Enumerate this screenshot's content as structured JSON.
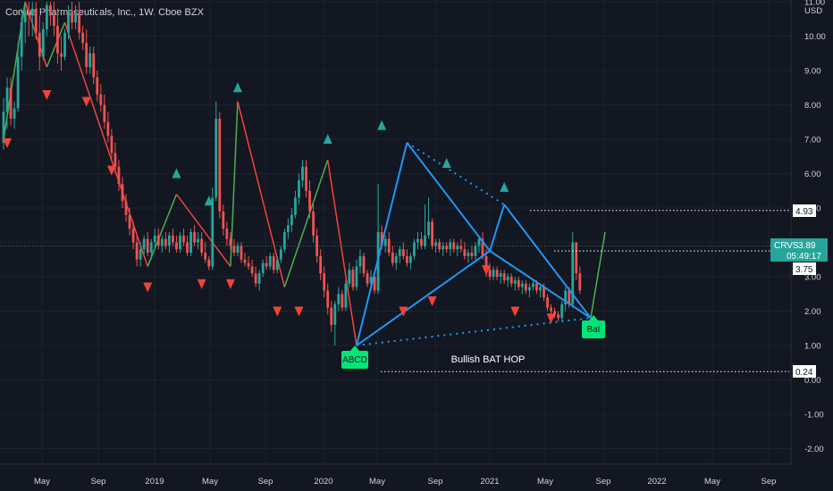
{
  "header": {
    "title": "Corvus Pharmaceuticals, Inc., 1W, Cboe BZX"
  },
  "chart_data": {
    "type": "candlestick",
    "title": "Corvus Pharmaceuticals, Inc., 1W, Cboe BZX",
    "currency": "USD",
    "y_ticks": [
      "11.00",
      "10.00",
      "9.00",
      "8.00",
      "7.00",
      "6.00",
      "5.00",
      "4.00",
      "3.00",
      "2.00",
      "1.00",
      "0.00",
      "-1.00",
      "-2.00"
    ],
    "ylim": [
      -2.5,
      11.0
    ],
    "x_ticks": [
      "May",
      "Sep",
      "2019",
      "May",
      "Sep",
      "2020",
      "May",
      "Sep",
      "2021",
      "May",
      "Sep",
      "2022",
      "May",
      "Sep"
    ],
    "price_tag": {
      "symbol": "CRVS",
      "price": "3.89",
      "countdown": "05:49:17"
    },
    "level_labels": [
      "4.93",
      "3.75",
      "0.24"
    ],
    "pattern_labels": {
      "abcd": "ABCD",
      "bat": "Bat",
      "text": "Bullish BAT HOP"
    },
    "colors": {
      "up": "#26a69a",
      "down": "#ef5350",
      "pattern": "#2196f3",
      "zigzag_up": "#4caf50",
      "zigzag_down": "#f44336"
    },
    "candles": [
      [
        6.9,
        8.2,
        6.7,
        7.8
      ],
      [
        7.8,
        8.8,
        7.3,
        8.5
      ],
      [
        8.5,
        8.8,
        7.4,
        7.6
      ],
      [
        7.6,
        8.1,
        7.3,
        7.9
      ],
      [
        7.9,
        9.8,
        7.8,
        9.4
      ],
      [
        9.4,
        10.8,
        9.0,
        10.4
      ],
      [
        10.4,
        11.0,
        9.8,
        10.7
      ],
      [
        10.7,
        11.0,
        10.0,
        10.6
      ],
      [
        10.6,
        11.0,
        10.0,
        10.8
      ],
      [
        10.8,
        11.0,
        9.9,
        10.1
      ],
      [
        10.1,
        10.6,
        9.0,
        9.4
      ],
      [
        9.4,
        10.4,
        9.3,
        10.2
      ],
      [
        10.2,
        11.0,
        10.0,
        10.9
      ],
      [
        10.9,
        11.0,
        10.3,
        10.6
      ],
      [
        10.6,
        11.0,
        10.0,
        10.3
      ],
      [
        10.3,
        10.8,
        9.2,
        9.5
      ],
      [
        9.5,
        10.0,
        9.0,
        9.4
      ],
      [
        9.4,
        10.2,
        9.3,
        10.1
      ],
      [
        10.1,
        10.9,
        9.9,
        10.7
      ],
      [
        10.7,
        11.0,
        10.2,
        10.4
      ],
      [
        10.4,
        10.9,
        10.2,
        10.7
      ],
      [
        10.7,
        11.0,
        9.9,
        10.1
      ],
      [
        10.1,
        10.3,
        9.6,
        9.8
      ],
      [
        9.8,
        10.2,
        8.9,
        9.1
      ],
      [
        9.1,
        9.7,
        8.9,
        9.5
      ],
      [
        9.5,
        9.7,
        8.6,
        8.8
      ],
      [
        8.8,
        9.0,
        8.1,
        8.3
      ],
      [
        8.3,
        8.6,
        7.8,
        8.0
      ],
      [
        8.0,
        8.3,
        7.3,
        7.5
      ],
      [
        7.5,
        7.8,
        6.9,
        7.1
      ],
      [
        7.1,
        7.3,
        6.4,
        6.6
      ],
      [
        6.6,
        6.9,
        6.0,
        6.2
      ],
      [
        6.2,
        6.4,
        5.5,
        5.7
      ],
      [
        5.7,
        5.9,
        5.0,
        5.2
      ],
      [
        5.2,
        5.4,
        4.6,
        4.8
      ],
      [
        4.8,
        5.0,
        4.2,
        4.4
      ],
      [
        4.4,
        4.6,
        3.8,
        4.0
      ],
      [
        4.0,
        4.2,
        3.3,
        3.5
      ],
      [
        3.5,
        4.0,
        3.3,
        3.8
      ],
      [
        3.8,
        4.2,
        3.6,
        4.1
      ],
      [
        4.1,
        4.3,
        3.6,
        3.7
      ],
      [
        3.7,
        4.1,
        3.5,
        4.0
      ],
      [
        4.0,
        4.4,
        3.8,
        4.2
      ],
      [
        4.2,
        4.4,
        3.8,
        3.9
      ],
      [
        3.9,
        4.2,
        3.7,
        4.1
      ],
      [
        4.1,
        4.3,
        3.8,
        3.9
      ],
      [
        3.9,
        4.3,
        3.7,
        4.2
      ],
      [
        4.2,
        4.4,
        3.9,
        4.0
      ],
      [
        4.0,
        4.2,
        3.7,
        3.8
      ],
      [
        3.8,
        4.3,
        3.7,
        4.2
      ],
      [
        4.2,
        4.4,
        3.9,
        4.0
      ],
      [
        4.0,
        4.2,
        3.6,
        3.7
      ],
      [
        3.7,
        4.4,
        3.6,
        4.3
      ],
      [
        4.3,
        4.5,
        3.9,
        4.0
      ],
      [
        4.0,
        4.3,
        3.8,
        4.1
      ],
      [
        4.1,
        4.3,
        3.6,
        3.7
      ],
      [
        3.7,
        4.0,
        3.4,
        3.5
      ],
      [
        3.5,
        3.6,
        3.2,
        3.3
      ],
      [
        3.3,
        5.6,
        3.2,
        5.3
      ],
      [
        5.3,
        8.1,
        5.2,
        7.6
      ],
      [
        7.6,
        7.8,
        4.7,
        4.9
      ],
      [
        4.9,
        5.1,
        4.2,
        4.4
      ],
      [
        4.4,
        4.6,
        3.9,
        4.1
      ],
      [
        4.1,
        4.3,
        3.8,
        3.9
      ],
      [
        3.9,
        4.1,
        3.6,
        3.7
      ],
      [
        3.7,
        4.0,
        3.6,
        3.9
      ],
      [
        3.9,
        4.0,
        3.4,
        3.5
      ],
      [
        3.5,
        3.7,
        3.3,
        3.4
      ],
      [
        3.4,
        3.6,
        3.2,
        3.3
      ],
      [
        3.3,
        3.5,
        3.0,
        3.1
      ],
      [
        3.1,
        3.3,
        2.7,
        2.8
      ],
      [
        2.8,
        3.2,
        2.6,
        3.1
      ],
      [
        3.1,
        3.5,
        3.0,
        3.4
      ],
      [
        3.4,
        3.6,
        3.2,
        3.3
      ],
      [
        3.3,
        3.7,
        3.2,
        3.6
      ],
      [
        3.6,
        3.7,
        3.1,
        3.2
      ],
      [
        3.2,
        3.6,
        3.1,
        3.5
      ],
      [
        3.5,
        3.9,
        3.4,
        3.8
      ],
      [
        3.8,
        4.4,
        3.7,
        4.3
      ],
      [
        4.3,
        4.7,
        4.1,
        4.5
      ],
      [
        4.5,
        5.0,
        4.3,
        4.8
      ],
      [
        4.8,
        5.5,
        4.7,
        5.3
      ],
      [
        5.3,
        6.0,
        5.1,
        5.8
      ],
      [
        5.8,
        6.4,
        5.6,
        6.2
      ],
      [
        6.2,
        6.4,
        5.3,
        5.5
      ],
      [
        5.5,
        5.8,
        4.7,
        4.9
      ],
      [
        4.9,
        5.1,
        4.0,
        4.2
      ],
      [
        4.2,
        4.4,
        3.4,
        3.6
      ],
      [
        3.6,
        3.8,
        2.9,
        3.1
      ],
      [
        3.1,
        3.3,
        2.4,
        2.6
      ],
      [
        2.6,
        2.8,
        1.9,
        2.1
      ],
      [
        2.1,
        2.3,
        1.4,
        1.6
      ],
      [
        1.6,
        2.3,
        1.0,
        2.2
      ],
      [
        2.2,
        2.7,
        2.0,
        2.5
      ],
      [
        2.5,
        2.6,
        2.0,
        2.1
      ],
      [
        2.1,
        2.9,
        2.0,
        2.8
      ],
      [
        2.8,
        3.4,
        2.7,
        3.2
      ],
      [
        3.2,
        3.3,
        2.6,
        2.7
      ],
      [
        2.7,
        3.5,
        2.6,
        3.3
      ],
      [
        3.3,
        3.8,
        3.1,
        3.6
      ],
      [
        3.6,
        3.7,
        3.0,
        3.1
      ],
      [
        3.1,
        3.2,
        2.7,
        2.8
      ],
      [
        2.8,
        3.2,
        2.6,
        3.0
      ],
      [
        3.0,
        3.1,
        2.5,
        2.6
      ],
      [
        2.6,
        5.7,
        2.5,
        4.3
      ],
      [
        4.3,
        4.5,
        3.8,
        3.9
      ],
      [
        3.9,
        4.2,
        3.7,
        4.1
      ],
      [
        4.1,
        4.3,
        3.6,
        3.7
      ],
      [
        3.7,
        3.9,
        3.3,
        3.4
      ],
      [
        3.4,
        3.7,
        3.2,
        3.6
      ],
      [
        3.6,
        3.9,
        3.4,
        3.8
      ],
      [
        3.8,
        4.0,
        3.5,
        3.6
      ],
      [
        3.6,
        3.8,
        3.3,
        3.4
      ],
      [
        3.4,
        3.7,
        3.2,
        3.6
      ],
      [
        3.6,
        4.1,
        3.5,
        4.0
      ],
      [
        4.0,
        4.3,
        3.8,
        4.1
      ],
      [
        4.1,
        4.3,
        3.8,
        3.9
      ],
      [
        3.9,
        5.1,
        3.8,
        4.2
      ],
      [
        4.2,
        5.3,
        4.1,
        4.6
      ],
      [
        4.6,
        4.7,
        3.8,
        3.9
      ],
      [
        3.9,
        4.1,
        3.7,
        4.0
      ],
      [
        4.0,
        4.1,
        3.7,
        3.8
      ],
      [
        3.8,
        4.0,
        3.6,
        3.9
      ],
      [
        3.9,
        4.0,
        3.7,
        3.8
      ],
      [
        3.8,
        4.1,
        3.6,
        4.0
      ],
      [
        4.0,
        4.1,
        3.7,
        3.8
      ],
      [
        3.8,
        4.0,
        3.6,
        3.9
      ],
      [
        3.9,
        4.1,
        3.7,
        3.8
      ],
      [
        3.8,
        4.0,
        3.5,
        3.6
      ],
      [
        3.6,
        3.8,
        3.4,
        3.7
      ],
      [
        3.7,
        3.9,
        3.5,
        3.6
      ],
      [
        3.6,
        4.0,
        3.5,
        3.9
      ],
      [
        3.9,
        4.2,
        3.7,
        4.1
      ],
      [
        4.1,
        4.3,
        3.5,
        3.6
      ],
      [
        3.6,
        3.8,
        3.0,
        3.2
      ],
      [
        3.2,
        3.4,
        2.9,
        3.0
      ],
      [
        3.0,
        3.3,
        2.9,
        3.2
      ],
      [
        3.2,
        3.3,
        2.9,
        3.0
      ],
      [
        3.0,
        3.2,
        2.8,
        3.1
      ],
      [
        3.1,
        3.2,
        2.8,
        2.9
      ],
      [
        2.9,
        3.1,
        2.7,
        3.0
      ],
      [
        3.0,
        3.1,
        2.7,
        2.8
      ],
      [
        2.8,
        3.0,
        2.6,
        2.9
      ],
      [
        2.9,
        3.0,
        2.6,
        2.7
      ],
      [
        2.7,
        2.9,
        2.5,
        2.8
      ],
      [
        2.8,
        2.9,
        2.5,
        2.6
      ],
      [
        2.6,
        2.8,
        2.4,
        2.7
      ],
      [
        2.7,
        2.9,
        2.6,
        2.8
      ],
      [
        2.8,
        2.9,
        2.5,
        2.6
      ],
      [
        2.6,
        2.8,
        2.4,
        2.7
      ],
      [
        2.7,
        2.8,
        2.3,
        2.4
      ],
      [
        2.4,
        2.5,
        2.0,
        2.1
      ],
      [
        2.1,
        2.2,
        1.9,
        2.0
      ],
      [
        2.0,
        2.1,
        1.8,
        1.9
      ],
      [
        1.9,
        2.0,
        1.7,
        1.8
      ],
      [
        1.8,
        2.3,
        1.7,
        2.2
      ],
      [
        2.2,
        2.7,
        2.0,
        2.6
      ],
      [
        2.6,
        2.7,
        2.1,
        2.2
      ],
      [
        2.2,
        4.3,
        2.1,
        4.0
      ],
      [
        4.0,
        4.0,
        2.9,
        3.1
      ],
      [
        3.1,
        3.3,
        2.5,
        2.6
      ]
    ]
  }
}
